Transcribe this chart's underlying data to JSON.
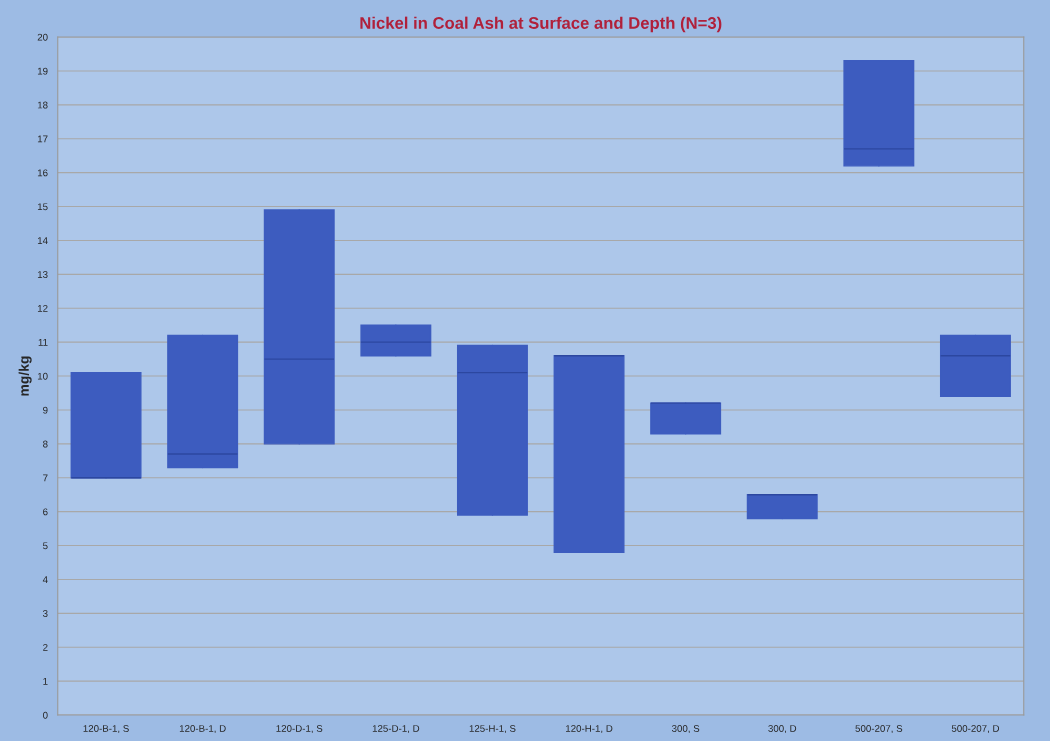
{
  "chart_data": {
    "type": "box",
    "title": "Nickel in Coal Ash at Surface and Depth (N=3)",
    "ylabel": "mg/kg",
    "categories": [
      "120-B-1, S",
      "120-B-1, D",
      "120-D-1, S",
      "125-D-1, D",
      "125-H-1, S",
      "120-H-1, D",
      "300, S",
      "300, D",
      "500-207, S",
      "500-207, D"
    ],
    "boxes": [
      {
        "low": 7.0,
        "q1": 7.0,
        "median": 7.0,
        "q3": 10.1,
        "high": 10.1
      },
      {
        "low": 7.3,
        "q1": 7.3,
        "median": 7.7,
        "q3": 11.2,
        "high": 11.2
      },
      {
        "low": 8.0,
        "q1": 8.0,
        "median": 10.5,
        "q3": 14.9,
        "high": 14.9
      },
      {
        "low": 10.6,
        "q1": 10.6,
        "median": 11.0,
        "q3": 11.5,
        "high": 11.5
      },
      {
        "low": 5.9,
        "q1": 5.9,
        "median": 10.1,
        "q3": 10.9,
        "high": 10.9
      },
      {
        "low": 4.8,
        "q1": 4.8,
        "median": 10.6,
        "q3": 10.6,
        "high": 10.6
      },
      {
        "low": 8.3,
        "q1": 8.3,
        "median": 9.2,
        "q3": 9.2,
        "high": 9.2
      },
      {
        "low": 5.8,
        "q1": 5.8,
        "median": 6.5,
        "q3": 6.5,
        "high": 6.5
      },
      {
        "low": 16.2,
        "q1": 16.2,
        "median": 16.7,
        "q3": 19.3,
        "high": 19.3
      },
      {
        "low": 9.4,
        "q1": 9.4,
        "median": 10.6,
        "q3": 11.2,
        "high": 11.2
      }
    ],
    "color": "#3d5cbf",
    "ylim": [
      0,
      20
    ],
    "yticks": [
      0,
      1,
      2,
      3,
      4,
      5,
      6,
      7,
      8,
      9,
      10,
      11,
      12,
      13,
      14,
      15,
      16,
      17,
      18,
      19,
      20
    ],
    "grid": "y"
  }
}
